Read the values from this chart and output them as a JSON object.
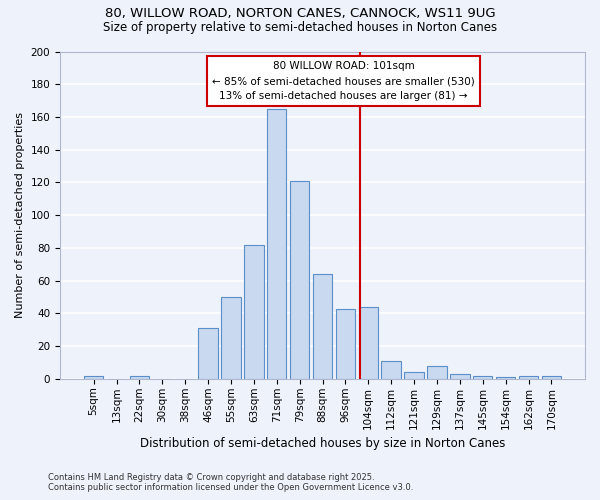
{
  "title1": "80, WILLOW ROAD, NORTON CANES, CANNOCK, WS11 9UG",
  "title2": "Size of property relative to semi-detached houses in Norton Canes",
  "xlabel": "Distribution of semi-detached houses by size in Norton Canes",
  "ylabel": "Number of semi-detached properties",
  "footnote1": "Contains HM Land Registry data © Crown copyright and database right 2025.",
  "footnote2": "Contains public sector information licensed under the Open Government Licence v3.0.",
  "bar_labels": [
    "5sqm",
    "13sqm",
    "22sqm",
    "30sqm",
    "38sqm",
    "46sqm",
    "55sqm",
    "63sqm",
    "71sqm",
    "79sqm",
    "88sqm",
    "96sqm",
    "104sqm",
    "112sqm",
    "121sqm",
    "129sqm",
    "137sqm",
    "145sqm",
    "154sqm",
    "162sqm",
    "170sqm"
  ],
  "bar_values": [
    2,
    0,
    2,
    0,
    0,
    31,
    50,
    82,
    165,
    121,
    64,
    43,
    44,
    11,
    4,
    8,
    3,
    2,
    1,
    2,
    2
  ],
  "bar_color": "#c9d9f0",
  "bar_edge_color": "#5b8fc9",
  "bg_color": "#eef2fb",
  "grid_color": "#ffffff",
  "vline_label": "80 WILLOW ROAD: 101sqm",
  "annotation_line1": "← 85% of semi-detached houses are smaller (530)",
  "annotation_line2": "13% of semi-detached houses are larger (81) →",
  "annotation_box_color": "#ffffff",
  "annotation_border_color": "#cc0000",
  "ylim": [
    0,
    200
  ],
  "yticks": [
    0,
    20,
    40,
    60,
    80,
    100,
    120,
    140,
    160,
    180,
    200
  ],
  "title1_fontsize": 9.5,
  "title2_fontsize": 8.5,
  "ylabel_fontsize": 8,
  "xlabel_fontsize": 8.5,
  "tick_fontsize": 7.5,
  "annot_fontsize": 7.5,
  "footnote_fontsize": 6
}
